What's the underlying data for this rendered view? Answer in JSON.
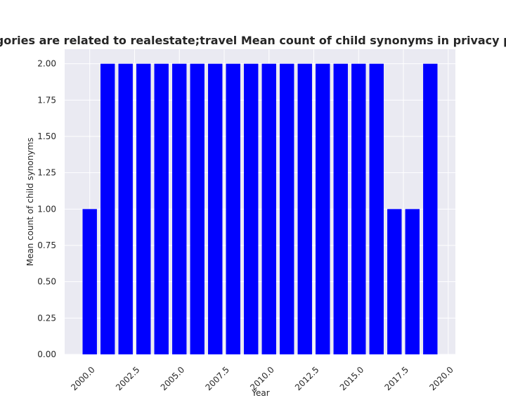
{
  "chart_data": {
    "type": "bar",
    "title": "n categories are related to realestate;travel Mean count of child synonyms in privacy policies b",
    "xlabel": "Year",
    "ylabel": "Mean count of child synonyms",
    "x": [
      2000,
      2001,
      2002,
      2003,
      2004,
      2005,
      2006,
      2007,
      2008,
      2009,
      2010,
      2011,
      2012,
      2013,
      2014,
      2015,
      2016,
      2017,
      2018,
      2019
    ],
    "values": [
      1,
      2,
      2,
      2,
      2,
      2,
      2,
      2,
      2,
      2,
      2,
      2,
      2,
      2,
      2,
      2,
      2,
      1,
      1,
      2
    ],
    "xlim": [
      1998.6,
      2020.4
    ],
    "ylim": [
      0,
      2.1
    ],
    "x_ticks": [
      "2000.0",
      "2002.5",
      "2005.0",
      "2007.5",
      "2010.0",
      "2012.5",
      "2015.0",
      "2017.5",
      "2020.0"
    ],
    "x_tick_values": [
      2000.0,
      2002.5,
      2005.0,
      2007.5,
      2010.0,
      2012.5,
      2015.0,
      2017.5,
      2020.0
    ],
    "y_ticks": [
      "0.00",
      "0.25",
      "0.50",
      "0.75",
      "1.00",
      "1.25",
      "1.50",
      "1.75",
      "2.00"
    ],
    "y_tick_values": [
      0,
      0.25,
      0.5,
      0.75,
      1.0,
      1.25,
      1.5,
      1.75,
      2.0
    ],
    "bar_width": 0.8,
    "grid": true,
    "bar_color": "#0000ff",
    "plot_background": "#eaeaf2",
    "grid_color": "#ffffff"
  }
}
